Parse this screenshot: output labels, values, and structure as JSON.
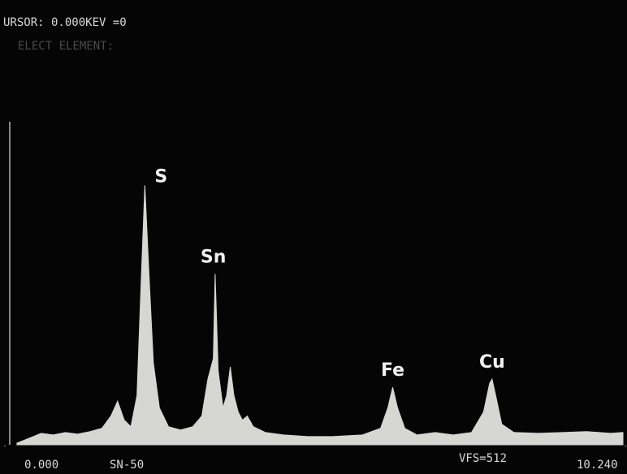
{
  "chart_data": {
    "type": "area",
    "cursor_text": "URSOR: 0.000KEV =0",
    "prompt_text": "ELECT ELEMENT:",
    "sample_label": "SN-50",
    "full_scale_label": "VFS=512",
    "color": "#d6d6d2",
    "xlim": [
      0,
      10.24
    ],
    "xticks": [
      {
        "value": 0,
        "label": "0.000"
      },
      {
        "value": 10.24,
        "label": "10.240"
      }
    ],
    "ylim": [
      0,
      512
    ],
    "x": [
      0.2,
      0.4,
      0.6,
      0.8,
      1.0,
      1.2,
      1.4,
      1.6,
      1.75,
      1.86,
      1.97,
      2.08,
      2.18,
      2.25,
      2.31,
      2.37,
      2.45,
      2.55,
      2.7,
      2.9,
      3.1,
      3.25,
      3.35,
      3.44,
      3.47,
      3.52,
      3.6,
      3.66,
      3.72,
      3.78,
      3.85,
      3.92,
      4.0,
      4.1,
      4.3,
      4.6,
      5.0,
      5.4,
      5.9,
      6.2,
      6.32,
      6.4,
      6.48,
      6.6,
      6.8,
      7.1,
      7.4,
      7.7,
      7.9,
      8.0,
      8.04,
      8.1,
      8.2,
      8.4,
      8.8,
      9.2,
      9.6,
      10.0,
      10.2
    ],
    "values": [
      2,
      8,
      14,
      12,
      15,
      13,
      16,
      20,
      35,
      53,
      30,
      22,
      60,
      200,
      316,
      220,
      100,
      45,
      22,
      18,
      22,
      35,
      80,
      105,
      208,
      90,
      45,
      60,
      95,
      60,
      40,
      30,
      35,
      22,
      15,
      12,
      10,
      10,
      12,
      20,
      45,
      70,
      45,
      20,
      12,
      15,
      12,
      15,
      40,
      75,
      80,
      60,
      25,
      15,
      14,
      15,
      16,
      14,
      15
    ],
    "annotations": [
      {
        "text": "S",
        "x": 2.31
      },
      {
        "text": "Sn",
        "x": 3.44
      },
      {
        "text": "Fe",
        "x": 6.4
      },
      {
        "text": "Cu",
        "x": 8.04
      }
    ]
  }
}
